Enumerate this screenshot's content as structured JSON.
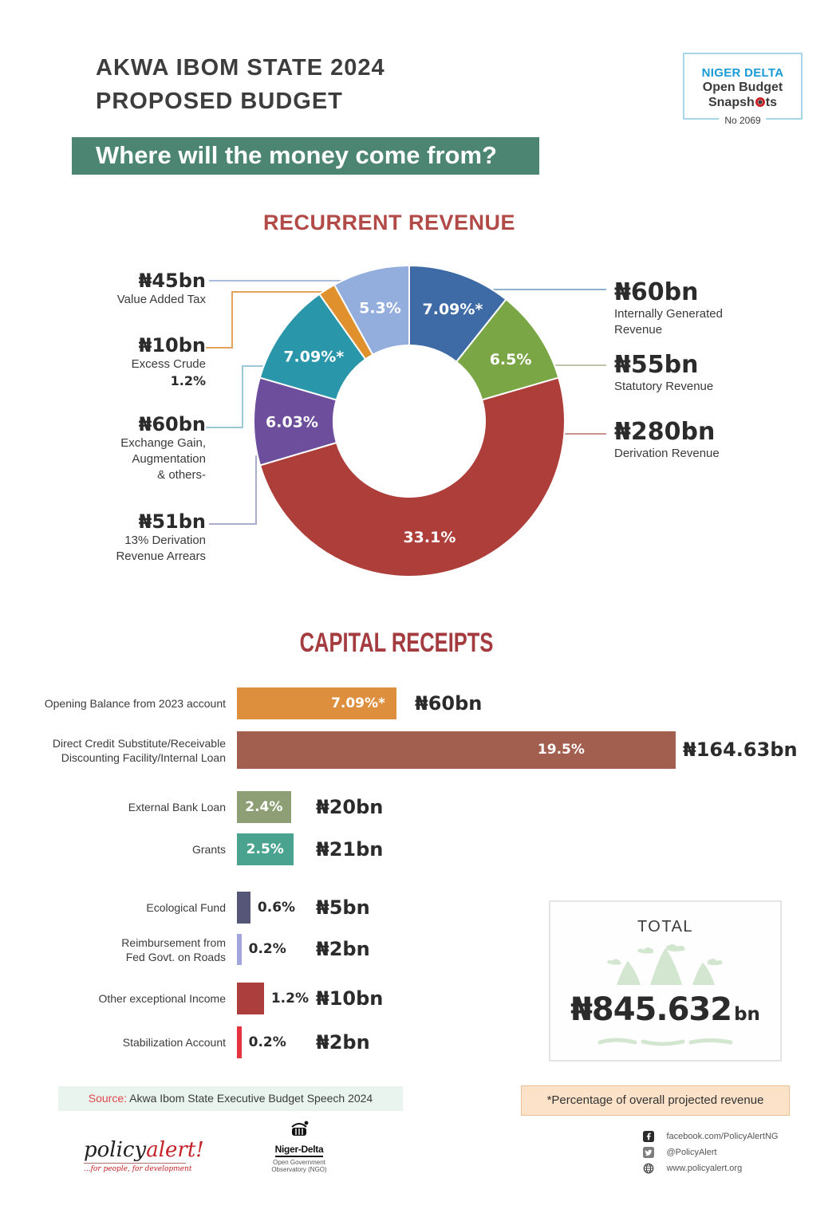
{
  "header": {
    "title_line1": "AKWA IBOM STATE 2024",
    "title_line2": "PROPOSED BUDGET"
  },
  "logo_badge": {
    "line1": "NIGER DELTA",
    "line2": "Open Budget",
    "line3_pre": "Snapsh",
    "line3_post": "ts",
    "number": "No 2069"
  },
  "banner": {
    "question": "Where will the money come from?",
    "bg": "#4c8571"
  },
  "recurrent": {
    "title": "RECURRENT REVENUE",
    "segments": [
      {
        "name": "Internally Generated Revenue",
        "amount": "₦60bn",
        "pct": 7.09,
        "pct_label": "7.09%*",
        "color": "#3e6ba6"
      },
      {
        "name": "Statutory Revenue",
        "amount": "₦55bn",
        "pct": 6.5,
        "pct_label": "6.5%",
        "color": "#7aa646"
      },
      {
        "name": "Derivation Revenue",
        "amount": "₦280bn",
        "pct": 33.1,
        "pct_label": "33.1%",
        "color": "#ae3e3a"
      },
      {
        "name": "13% Derivation Revenue Arrears",
        "amount": "₦51bn",
        "pct": 6.03,
        "pct_label": "6.03%",
        "color": "#6d4e9c"
      },
      {
        "name": "Exchange Gain, Augmentation & others-",
        "amount": "₦60bn",
        "pct": 7.09,
        "pct_label": "7.09%*",
        "color": "#2a96a9"
      },
      {
        "name": "Excess Crude",
        "amount": "₦10bn",
        "pct": 1.2,
        "pct_label": "1.2%",
        "color": "#e1902e"
      },
      {
        "name": "Value Added Tax",
        "amount": "₦45bn",
        "pct": 5.3,
        "pct_label": "5.3%",
        "color": "#93aedd"
      }
    ],
    "left_labels": [
      {
        "amount": "₦45bn",
        "line1": "Value Added Tax"
      },
      {
        "amount": "₦10bn",
        "line1": "Excess Crude",
        "pct_bold": "1.2%"
      },
      {
        "amount": "₦60bn",
        "line1": "Exchange Gain,",
        "line2": "Augmentation",
        "line3": "& others-"
      },
      {
        "amount": "₦51bn",
        "line1": "13% Derivation",
        "line2": "Revenue Arrears"
      }
    ],
    "right_labels": [
      {
        "amount": "₦60bn",
        "line1": "Internally Generated",
        "line2": "Revenue"
      },
      {
        "amount": "₦55bn",
        "line1": "Statutory Revenue"
      },
      {
        "amount": "₦280bn",
        "line1": "Derivation Revenue"
      }
    ]
  },
  "capital": {
    "title": "CAPITAL RECEIPTS",
    "rows": [
      {
        "label_lines": [
          "Opening Balance from 2023 account"
        ],
        "pct": 7.09,
        "pct_label": "7.09%*",
        "value": "₦60bn",
        "color": "#de8f3e",
        "pct_pos": "inside-right"
      },
      {
        "label_lines": [
          "Direct Credit Substitute/Receivable",
          "Discounting Facility/Internal Loan"
        ],
        "pct": 19.5,
        "pct_label": "19.5%",
        "value": "₦164.63bn",
        "color": "#a25f50",
        "pct_pos": "inside-inset"
      },
      {
        "label_lines": [
          "External Bank Loan"
        ],
        "pct": 2.4,
        "pct_label": "2.4%",
        "value": "₦20bn",
        "color": "#8e9e75",
        "pct_pos": "inside-center"
      },
      {
        "label_lines": [
          "Grants"
        ],
        "pct": 2.5,
        "pct_label": "2.5%",
        "value": "₦21bn",
        "color": "#4aa38f",
        "pct_pos": "inside-center"
      },
      {
        "label_lines": [
          "Ecological Fund"
        ],
        "pct": 0.6,
        "pct_label": "0.6%",
        "value": "₦5bn",
        "color": "#565678",
        "pct_pos": "outside"
      },
      {
        "label_lines": [
          "Reimbursement from",
          "Fed Govt. on Roads"
        ],
        "pct": 0.2,
        "pct_label": "0.2%",
        "value": "₦2bn",
        "color": "#a2a6dc",
        "pct_pos": "outside"
      },
      {
        "label_lines": [
          "Other exceptional Income"
        ],
        "pct": 1.2,
        "pct_label": "1.2%",
        "value": "₦10bn",
        "color": "#ad3e3e",
        "pct_pos": "outside"
      },
      {
        "label_lines": [
          "Stabilization Account"
        ],
        "pct": 0.2,
        "pct_label": "0.2%",
        "value": "₦2bn",
        "color": "#e53440",
        "pct_pos": "outside"
      }
    ]
  },
  "total": {
    "label": "TOTAL",
    "amount": "₦845.632",
    "suffix": "bn"
  },
  "source_strip": {
    "prefix": "Source:",
    "text": " Akwa Ibom State Executive Budget Speech 2024"
  },
  "note_strip": {
    "text": "*Percentage of overall projected revenue"
  },
  "footer": {
    "policyalert": {
      "word_dark": "policy",
      "word_red": "alert!",
      "tagline": "...for people, for development"
    },
    "nigerdelta": {
      "name": "Niger-Delta",
      "sub1": "Open Government",
      "sub2": "Observatory (NGO)"
    },
    "social": [
      {
        "icon": "facebook",
        "text": "facebook.com/PolicyAlertNG"
      },
      {
        "icon": "twitter",
        "text": "@PolicyAlert"
      },
      {
        "icon": "globe",
        "text": "www.policyalert.org"
      }
    ]
  },
  "chart_data": [
    {
      "type": "pie",
      "subtype": "donut",
      "title": "RECURRENT REVENUE",
      "labels": [
        "Internally Generated Revenue",
        "Statutory Revenue",
        "Derivation Revenue",
        "13% Derivation Revenue Arrears",
        "Exchange Gain, Augmentation & others-",
        "Excess Crude",
        "Value Added Tax"
      ],
      "values_bn": [
        60,
        55,
        280,
        51,
        60,
        10,
        45
      ],
      "percents": [
        7.09,
        6.5,
        33.1,
        6.03,
        7.09,
        1.2,
        5.3
      ],
      "colors": [
        "#3e6ba6",
        "#7aa646",
        "#ae3e3a",
        "#6d4e9c",
        "#2a96a9",
        "#e1902e",
        "#93aedd"
      ],
      "note": "percentages are of overall projected revenue ₦845.632bn"
    },
    {
      "type": "bar",
      "orientation": "horizontal",
      "title": "CAPITAL RECEIPTS",
      "categories": [
        "Opening Balance from 2023 account",
        "Direct Credit Substitute/Receivable Discounting Facility/Internal Loan",
        "External Bank Loan",
        "Grants",
        "Ecological Fund",
        "Reimbursement from Fed Govt. on Roads",
        "Other exceptional Income",
        "Stabilization Account"
      ],
      "values_bn": [
        60,
        164.63,
        20,
        21,
        5,
        2,
        10,
        2
      ],
      "percents": [
        7.09,
        19.5,
        2.4,
        2.5,
        0.6,
        0.2,
        1.2,
        0.2
      ],
      "colors": [
        "#de8f3e",
        "#a25f50",
        "#8e9e75",
        "#4aa38f",
        "#565678",
        "#a2a6dc",
        "#ad3e3e",
        "#e53440"
      ]
    }
  ]
}
